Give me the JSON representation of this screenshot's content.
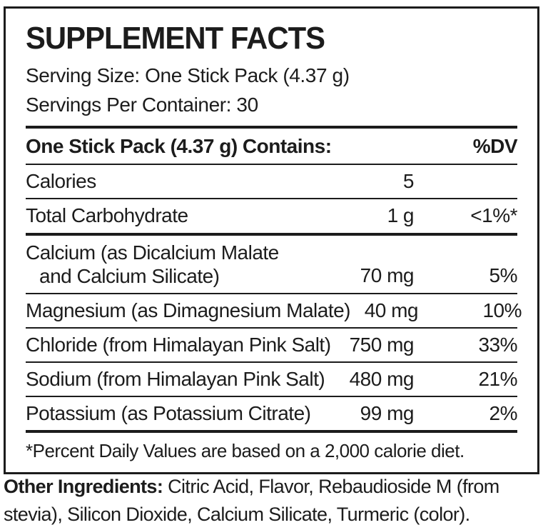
{
  "colors": {
    "ink": "#1c1c1c",
    "background": "#ffffff"
  },
  "panel": {
    "title": "SUPPLEMENT FACTS",
    "serving_size": "Serving Size: One Stick Pack (4.37 g)",
    "servings_per_container": "Servings Per Container: 30",
    "header": {
      "contains": "One Stick Pack (4.37 g) Contains:",
      "dv": "%DV"
    },
    "rows": [
      {
        "label": "Calories",
        "amount": "5",
        "dv": ""
      },
      {
        "label": "Total Carbohydrate",
        "amount": "1 g",
        "dv": "<1%*"
      },
      {
        "label_line1": "Calcium (as Dicalcium Malate",
        "label_line2": "and Calcium Silicate)",
        "amount": "70 mg",
        "dv": "5%"
      },
      {
        "label": "Magnesium (as Dimagnesium Malate)",
        "amount": "40 mg",
        "dv": "10%"
      },
      {
        "label": "Chloride (from Himalayan Pink Salt)",
        "amount": "750 mg",
        "dv": "33%"
      },
      {
        "label": "Sodium (from Himalayan Pink Salt)",
        "amount": "480 mg",
        "dv": "21%"
      },
      {
        "label": "Potassium (as Potassium Citrate)",
        "amount": "99 mg",
        "dv": "2%"
      }
    ],
    "footnote": "*Percent Daily Values are based on a 2,000 calorie diet."
  },
  "other_ingredients": {
    "bold_label": "Other Ingredients:",
    "line1_rest": " Citric Acid, Flavor, Rebaudioside M (from",
    "line2": "stevia), Silicon Dioxide, Calcium Silicate, Turmeric (color)."
  }
}
